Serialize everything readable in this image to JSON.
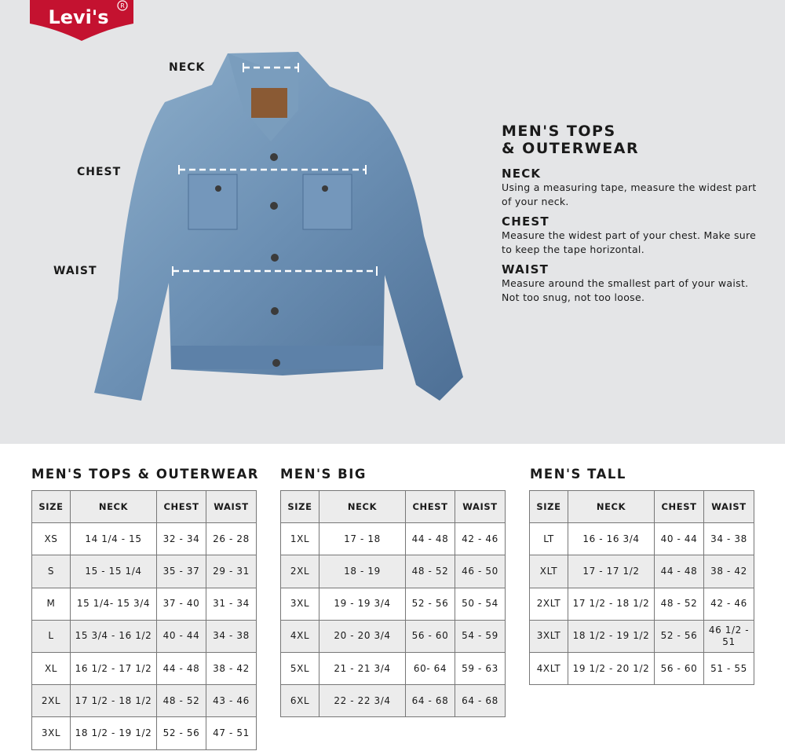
{
  "brand": {
    "logo_text": "Levi's",
    "accent": "#c41230"
  },
  "hero": {
    "labels": {
      "neck": "NECK",
      "chest": "CHEST",
      "waist": "WAIST"
    }
  },
  "guide": {
    "title_line1": "MEN'S TOPS",
    "title_line2": "& OUTERWEAR",
    "sections": [
      {
        "heading": "NECK",
        "text": "Using a measuring tape, measure the widest part of your neck."
      },
      {
        "heading": "CHEST",
        "text": "Measure the widest part of your chest. Make sure to keep the tape horizontal."
      },
      {
        "heading": "WAIST",
        "text": "Measure around the smallest part of your waist. Not too snug, not too loose."
      }
    ]
  },
  "tables": [
    {
      "title": "MEN'S TOPS & OUTERWEAR",
      "headers": [
        "SIZE",
        "NECK",
        "CHEST",
        "WAIST"
      ],
      "rows": [
        [
          "XS",
          "14 1/4 - 15",
          "32 - 34",
          "26 - 28"
        ],
        [
          "S",
          "15 - 15 1/4",
          "35 - 37",
          "29 - 31"
        ],
        [
          "M",
          "15 1/4- 15 3/4",
          "37 - 40",
          "31 - 34"
        ],
        [
          "L",
          "15 3/4 - 16 1/2",
          "40 - 44",
          "34 - 38"
        ],
        [
          "XL",
          "16 1/2 - 17 1/2",
          "44 - 48",
          "38 - 42"
        ],
        [
          "2XL",
          "17 1/2 - 18 1/2",
          "48 - 52",
          "43 - 46"
        ],
        [
          "3XL",
          "18 1/2 - 19 1/2",
          "52 - 56",
          "47 - 51"
        ]
      ]
    },
    {
      "title": "MEN'S BIG",
      "headers": [
        "SIZE",
        "NECK",
        "CHEST",
        "WAIST"
      ],
      "rows": [
        [
          "1XL",
          "17 - 18",
          "44 - 48",
          "42 - 46"
        ],
        [
          "2XL",
          "18 - 19",
          "48 - 52",
          "46 - 50"
        ],
        [
          "3XL",
          "19 - 19 3/4",
          "52 - 56",
          "50 - 54"
        ],
        [
          "4XL",
          "20 - 20 3/4",
          "56 - 60",
          "54 - 59"
        ],
        [
          "5XL",
          "21 - 21 3/4",
          "60- 64",
          "59 - 63"
        ],
        [
          "6XL",
          "22 - 22 3/4",
          "64 - 68",
          "64 - 68"
        ]
      ]
    },
    {
      "title": "MEN'S TALL",
      "headers": [
        "SIZE",
        "NECK",
        "CHEST",
        "WAIST"
      ],
      "rows": [
        [
          "LT",
          "16 - 16 3/4",
          "40 - 44",
          "34 - 38"
        ],
        [
          "XLT",
          "17 - 17 1/2",
          "44 - 48",
          "38 - 42"
        ],
        [
          "2XLT",
          "17 1/2 - 18 1/2",
          "48 - 52",
          "42 - 46"
        ],
        [
          "3XLT",
          "18 1/2 - 19 1/2",
          "52 - 56",
          "46 1/2 - 51"
        ],
        [
          "4XLT",
          "19 1/2 - 20 1/2",
          "56 - 60",
          "51 - 55"
        ]
      ]
    }
  ]
}
